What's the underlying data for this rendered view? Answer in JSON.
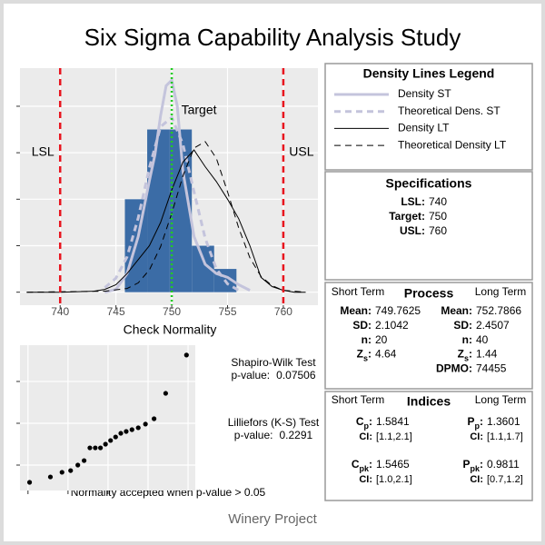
{
  "title": "Six Sigma Capability Analysis Study",
  "footer": "Winery Project",
  "chart_data": [
    {
      "type": "histogram",
      "xlabel": "Check Normality",
      "bins": [
        745.8,
        747.8,
        749.8,
        751.8,
        753.8,
        755.8
      ],
      "values": [
        0.1,
        0.175,
        0.175,
        0.05,
        0.025
      ],
      "color": "#3b6ca6",
      "xlim": [
        736.4,
        763.1
      ],
      "xticks": [
        740,
        745,
        750,
        755,
        760
      ],
      "ylim": [
        -0.014,
        0.241
      ],
      "yticks": [
        0,
        0.05,
        0.1,
        0.15,
        0.2
      ],
      "grid": true,
      "reference_lines": [
        {
          "label": "LSL",
          "value": 740,
          "color": "#e8141e",
          "style": "dashed"
        },
        {
          "label": "Target",
          "value": 750,
          "color": "#22cc22",
          "style": "dotted"
        },
        {
          "label": "USL",
          "value": 760,
          "color": "#e8141e",
          "style": "dashed"
        }
      ],
      "legend_title": "Density Lines Legend",
      "lines": [
        {
          "name": "Density ST",
          "color": "#c4c4dc",
          "width": 3,
          "dash": false,
          "x": [
            744,
            745,
            746,
            747,
            748,
            748.5,
            749,
            749.5,
            750,
            750.5,
            751,
            752,
            753,
            754,
            755,
            756,
            757
          ],
          "values": [
            0,
            0.003,
            0.02,
            0.06,
            0.12,
            0.148,
            0.19,
            0.222,
            0.228,
            0.2,
            0.13,
            0.06,
            0.03,
            0.02,
            0.016,
            0.008,
            0.002
          ]
        },
        {
          "name": "Theoretical Dens. ST",
          "color": "#c4c4dc",
          "width": 3,
          "dash": true,
          "x": [
            744,
            745,
            746,
            747,
            748,
            749,
            750,
            751,
            752,
            753,
            754,
            755,
            756
          ],
          "values": [
            0.005,
            0.015,
            0.038,
            0.08,
            0.134,
            0.178,
            0.188,
            0.159,
            0.108,
            0.058,
            0.025,
            0.009,
            0.002
          ]
        },
        {
          "name": "Density LT",
          "color": "#000000",
          "width": 1,
          "dash": false,
          "x": [
            737,
            740,
            743,
            744,
            745,
            746,
            747,
            748,
            749,
            750,
            751,
            752,
            753,
            754,
            755,
            756,
            757,
            758,
            759,
            760,
            761,
            762
          ],
          "values": [
            0,
            0,
            0.001,
            0.003,
            0.008,
            0.02,
            0.035,
            0.05,
            0.075,
            0.11,
            0.14,
            0.153,
            0.135,
            0.119,
            0.1,
            0.079,
            0.05,
            0.016,
            0.006,
            0.002,
            0,
            0
          ]
        },
        {
          "name": "Theoretical Density LT",
          "color": "#000000",
          "width": 1,
          "dash": true,
          "x": [
            737,
            744,
            746,
            747,
            748,
            749,
            750,
            751,
            752,
            753,
            754,
            755,
            756,
            757,
            758,
            759,
            760,
            761,
            762
          ],
          "values": [
            0,
            0.001,
            0.004,
            0.01,
            0.024,
            0.049,
            0.085,
            0.125,
            0.155,
            0.162,
            0.144,
            0.108,
            0.069,
            0.037,
            0.017,
            0.007,
            0.002,
            0.001,
            0
          ]
        }
      ]
    },
    {
      "type": "scatter",
      "x": [
        -1.96,
        -1.44,
        -1.15,
        -0.935,
        -0.755,
        -0.598,
        -0.454,
        -0.319,
        -0.189,
        -0.063,
        0.063,
        0.189,
        0.319,
        0.454,
        0.598,
        0.755,
        0.935,
        1.15,
        1.44,
        1.96
      ],
      "values": [
        746.47,
        746.79,
        747.07,
        747.17,
        747.5,
        747.77,
        748.53,
        748.53,
        748.53,
        748.75,
        748.97,
        749.18,
        749.4,
        749.51,
        749.62,
        749.73,
        749.95,
        750.27,
        751.79,
        754.08
      ],
      "color": "#000000",
      "xlim": [
        -2.2,
        2.18
      ],
      "xticks": [
        -2,
        -1,
        0,
        1,
        2
      ],
      "ylim": [
        745.98,
        754.67
      ],
      "yticks": [
        747.5,
        750,
        752.5
      ],
      "grid": true,
      "annotations": [
        {
          "label": "Shapiro-Wilk Test",
          "p_label": "p-value:",
          "p_value": 0.07506
        },
        {
          "label": "Lilliefors (K-S) Test",
          "p_label": "p-value:",
          "p_value": 0.2291
        }
      ],
      "note": "Normality accepted when p-value > 0.05"
    }
  ],
  "specifications": {
    "title": "Specifications",
    "rows": [
      {
        "label": "LSL:",
        "value": 740
      },
      {
        "label": "Target:",
        "value": 750
      },
      {
        "label": "USL:",
        "value": 760
      }
    ]
  },
  "process": {
    "title": "Process",
    "left_heading": "Short Term",
    "right_heading": "Long Term",
    "short_term": [
      {
        "label": "Mean:",
        "value": 749.7625
      },
      {
        "label": "SD:",
        "value": 2.1042
      },
      {
        "label": "n:",
        "value": 20
      },
      {
        "symbol": "Z",
        "subscript": "s",
        "separator": ":",
        "value": 4.64
      }
    ],
    "long_term": [
      {
        "label": "Mean:",
        "value": 752.7866
      },
      {
        "label": "SD:",
        "value": 2.4507
      },
      {
        "label": "n:",
        "value": 40
      },
      {
        "symbol": "Z",
        "subscript": "s",
        "separator": ":",
        "value": 1.44
      },
      {
        "label": "DPMO:",
        "value": 74455
      }
    ]
  },
  "indices": {
    "title": "Indices",
    "left_heading": "Short Term",
    "right_heading": "Long Term",
    "short_term": [
      {
        "symbol": "C",
        "subscript": "p",
        "separator": ":",
        "value": 1.5841,
        "ci_label": "CI:",
        "ci": "[1.1,2.1]"
      },
      {
        "symbol": "C",
        "subscript": "pk",
        "separator": ":",
        "value": 1.5465,
        "ci_label": "CI:",
        "ci": "[1.0,2.1]"
      }
    ],
    "long_term": [
      {
        "symbol": "P",
        "subscript": "p",
        "separator": ":",
        "value": 1.3601,
        "ci_label": "CI:",
        "ci": "[1.1,1.7]"
      },
      {
        "symbol": "P",
        "subscript": "pk",
        "separator": ":",
        "value": 0.9811,
        "ci_label": "CI:",
        "ci": "[0.7,1.2]"
      }
    ]
  }
}
